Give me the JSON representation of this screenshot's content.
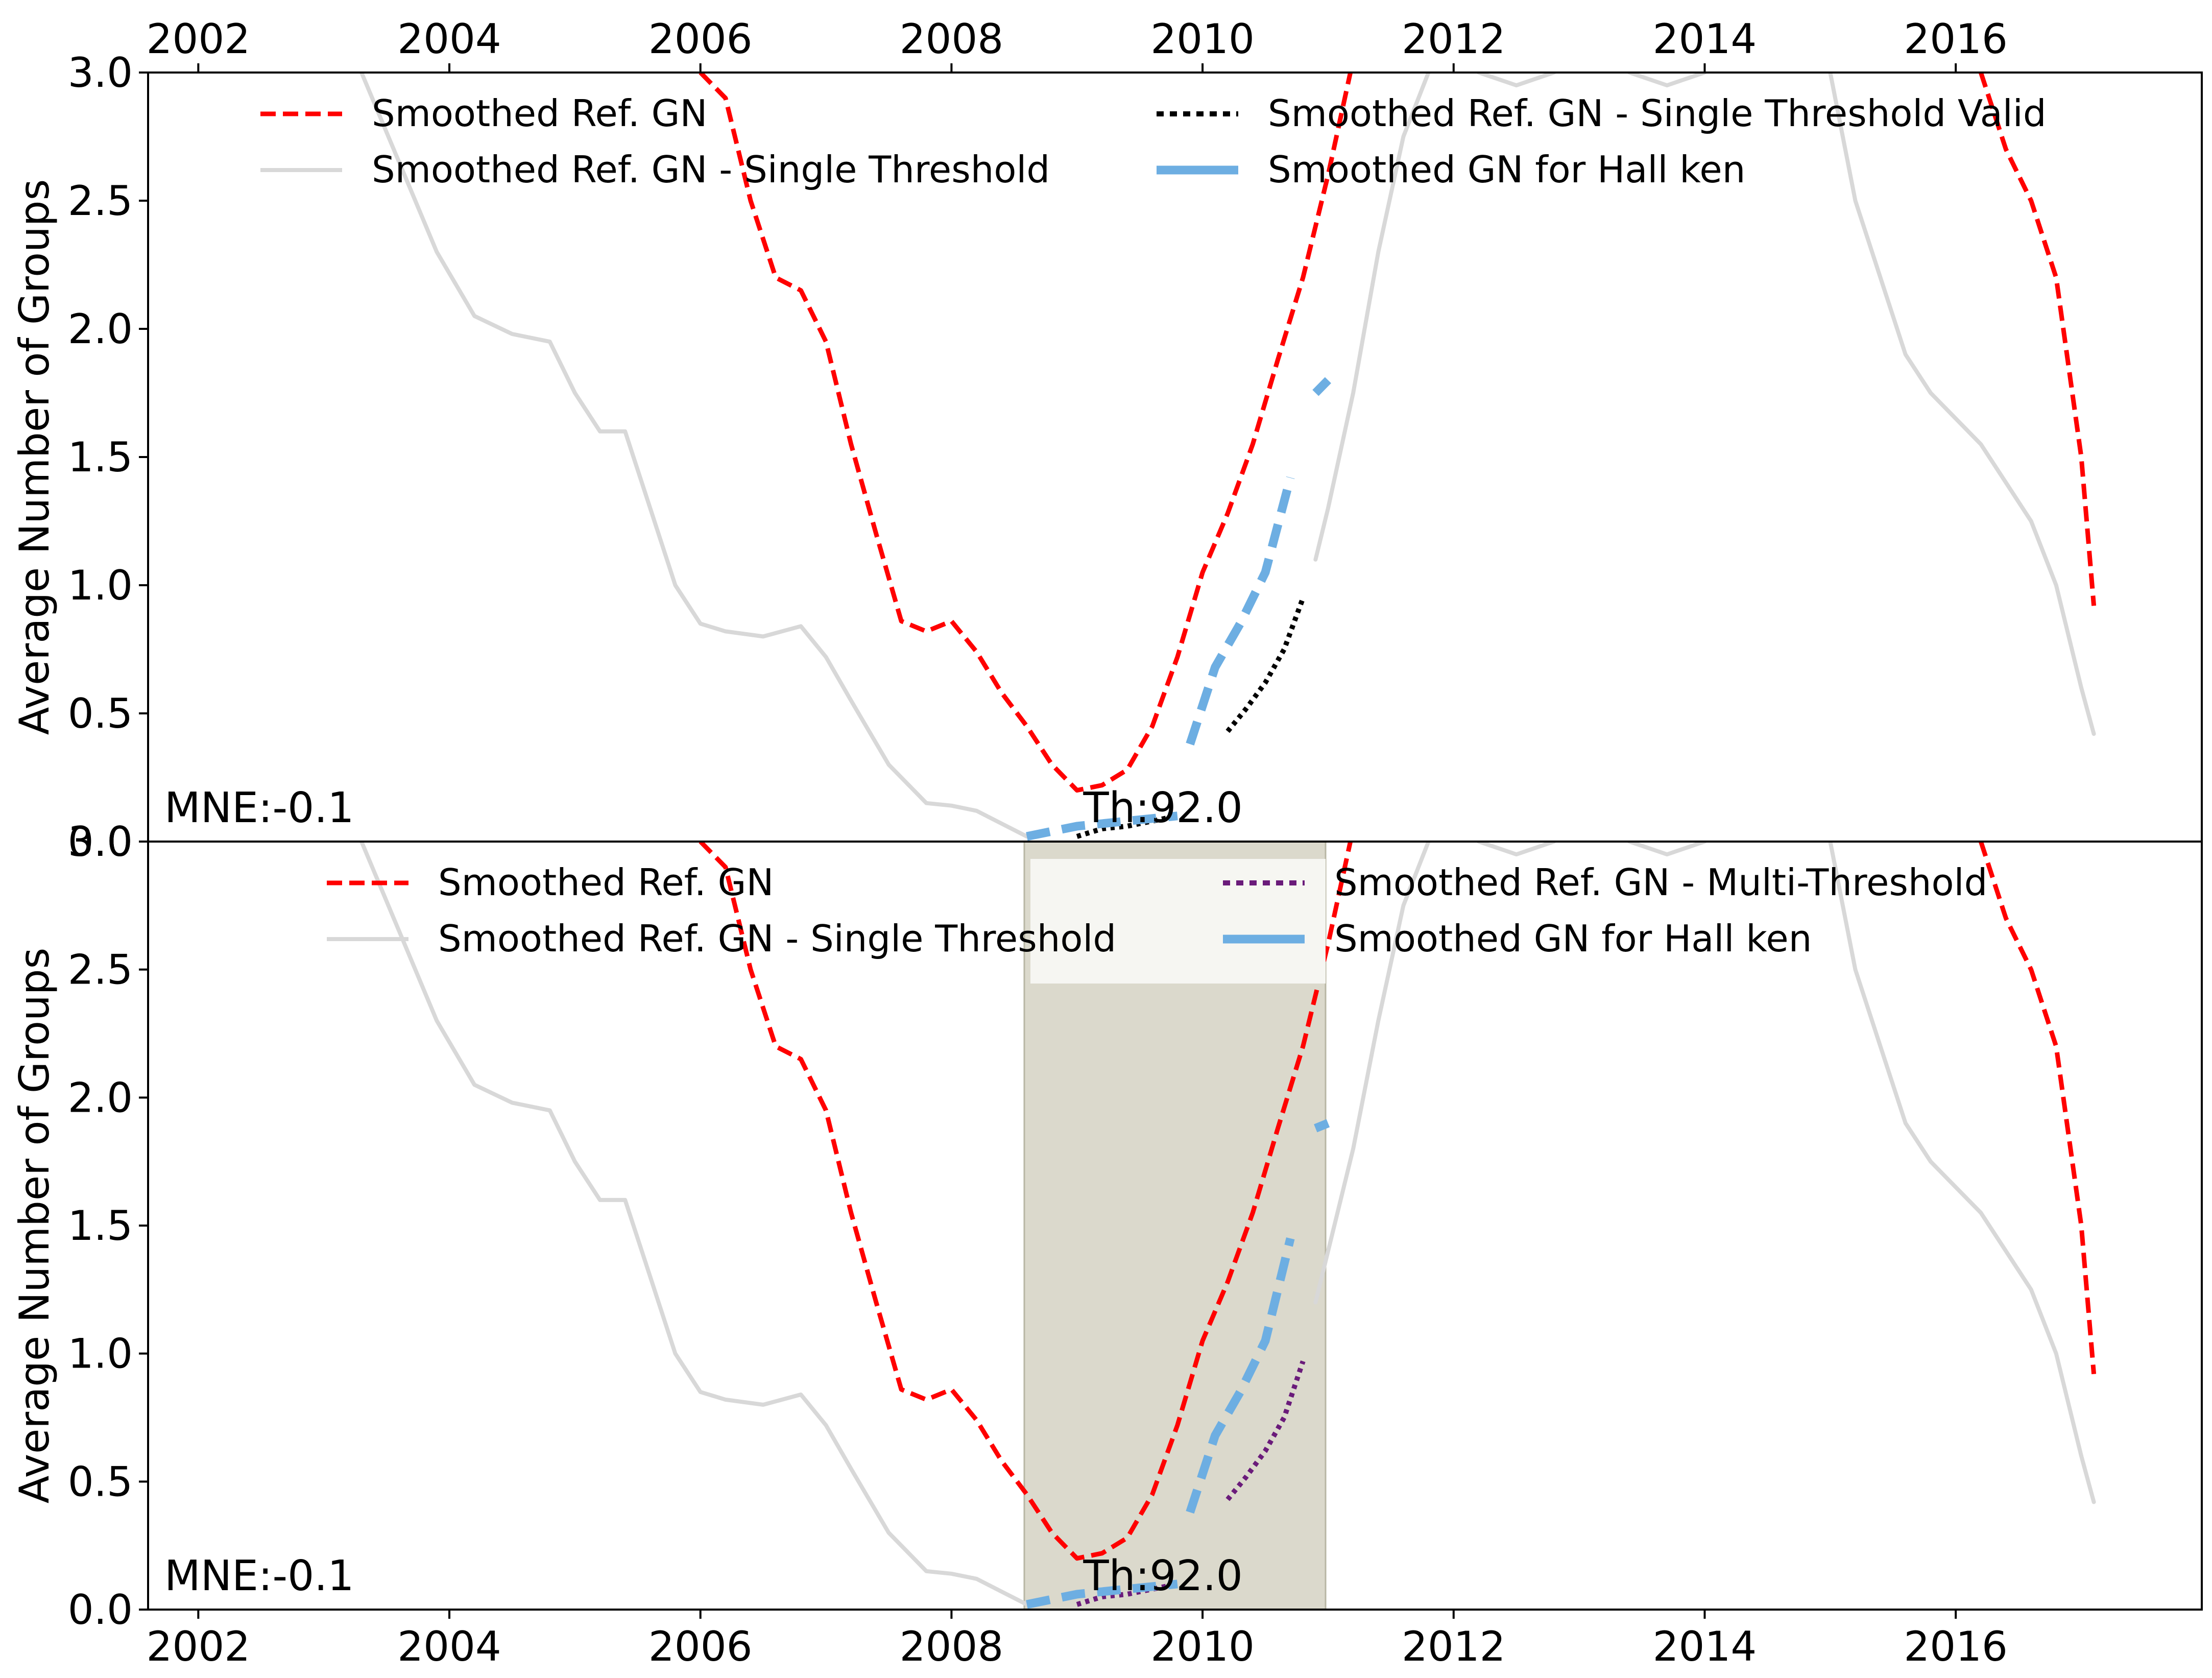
{
  "chart_data": [
    {
      "type": "line",
      "panel": "top",
      "ylabel": "Average Number of Groups",
      "xlabel": "",
      "xlim": [
        2001.6,
        2017.96
      ],
      "ylim": [
        0.0,
        3.0
      ],
      "x_ticks": [
        2002,
        2004,
        2006,
        2008,
        2010,
        2012,
        2014,
        2016
      ],
      "x_tick_labels": [
        "2002",
        "2004",
        "2006",
        "2008",
        "2010",
        "2012",
        "2014",
        "2016"
      ],
      "x_ticks_position": "top",
      "y_ticks": [
        0.0,
        0.5,
        1.0,
        1.5,
        2.0,
        2.5,
        3.0
      ],
      "y_tick_labels": [
        "0.0",
        "0.5",
        "1.0",
        "1.5",
        "2.0",
        "2.5",
        "3.0"
      ],
      "grid": false,
      "legend_position": "top",
      "annotations": [
        {
          "text": "MNE:-0.1",
          "x": 2001.7,
          "y": 0.07
        },
        {
          "text": "Th:92.0",
          "x": 2009.05,
          "y": 0.07
        }
      ],
      "series": [
        {
          "name": "Smoothed Ref. GN",
          "color": "#ff0000",
          "style": "dashed",
          "x": [
            2006.0,
            2006.2,
            2006.4,
            2006.6,
            2006.8,
            2007.0,
            2007.2,
            2007.4,
            2007.6,
            2007.8,
            2008.0,
            2008.2,
            2008.4,
            2008.6,
            2008.8,
            2009.0,
            2009.2,
            2009.4,
            2009.6,
            2009.8,
            2010.0,
            2010.2,
            2010.4,
            2010.6,
            2010.8,
            2011.0,
            2011.2
          ],
          "y": [
            3.0,
            2.9,
            2.5,
            2.2,
            2.15,
            1.95,
            1.55,
            1.2,
            0.86,
            0.82,
            0.86,
            0.74,
            0.58,
            0.45,
            0.3,
            0.2,
            0.22,
            0.28,
            0.45,
            0.72,
            1.05,
            1.28,
            1.55,
            1.88,
            2.2,
            2.6,
            3.05
          ]
        },
        {
          "name": "Smoothed Ref. GN",
          "color": "#ff0000",
          "style": "dashed",
          "x": [
            2016.2,
            2016.4,
            2016.6,
            2016.8,
            2017.0,
            2017.1
          ],
          "y": [
            3.0,
            2.7,
            2.5,
            2.2,
            1.5,
            0.92
          ]
        },
        {
          "name": "Smoothed Ref. GN - Single Threshold",
          "color": "#d8d8d8",
          "style": "solid",
          "x": [
            2003.3,
            2003.6,
            2003.9,
            2004.2,
            2004.5,
            2004.8,
            2005.0,
            2005.2,
            2005.4,
            2005.6,
            2005.8,
            2006.0,
            2006.2,
            2006.5,
            2006.8,
            2007.0,
            2007.2,
            2007.5,
            2007.8,
            2008.0,
            2008.2,
            2008.4,
            2008.6
          ],
          "y": [
            3.0,
            2.65,
            2.3,
            2.05,
            1.98,
            1.95,
            1.75,
            1.6,
            1.6,
            1.3,
            1.0,
            0.85,
            0.82,
            0.8,
            0.84,
            0.72,
            0.55,
            0.3,
            0.15,
            0.14,
            0.12,
            0.07,
            0.02
          ]
        },
        {
          "name": "Smoothed Ref. GN - Single Threshold",
          "color": "#d8d8d8",
          "style": "solid",
          "x": [
            2010.9,
            2011.0,
            2011.2,
            2011.4,
            2011.6,
            2011.8
          ],
          "y": [
            1.1,
            1.3,
            1.75,
            2.3,
            2.75,
            3.0
          ]
        },
        {
          "name": "Smoothed Ref. GN - Single Threshold",
          "color": "#d8d8d8",
          "style": "solid",
          "x": [
            2012.2,
            2012.5,
            2012.8
          ],
          "y": [
            3.0,
            2.95,
            3.0
          ]
        },
        {
          "name": "Smoothed Ref. GN - Single Threshold",
          "color": "#d8d8d8",
          "style": "solid",
          "x": [
            2013.4,
            2013.7,
            2014.0
          ],
          "y": [
            3.0,
            2.95,
            3.0
          ]
        },
        {
          "name": "Smoothed Ref. GN - Single Threshold",
          "color": "#d8d8d8",
          "style": "solid",
          "x": [
            2015.0,
            2015.2,
            2015.4,
            2015.6,
            2015.8,
            2016.0,
            2016.2,
            2016.4,
            2016.6,
            2016.8,
            2017.0,
            2017.1
          ],
          "y": [
            3.0,
            2.5,
            2.2,
            1.9,
            1.75,
            1.65,
            1.55,
            1.4,
            1.25,
            1.0,
            0.6,
            0.42
          ]
        },
        {
          "name": "Smoothed Ref. GN - Single Threshold Valid",
          "color": "#000000",
          "style": "dotted",
          "x": [
            2009.0,
            2009.2,
            2009.4,
            2009.6,
            2009.8
          ],
          "y": [
            0.02,
            0.05,
            0.06,
            0.08,
            0.1
          ]
        },
        {
          "name": "Smoothed Ref. GN - Single Threshold Valid",
          "color": "#000000",
          "style": "dotted",
          "x": [
            2010.2,
            2010.35,
            2010.5,
            2010.65,
            2010.8
          ],
          "y": [
            0.43,
            0.52,
            0.62,
            0.75,
            0.95
          ]
        },
        {
          "name": "Smoothed GN for Hall ken",
          "color": "#6daee2",
          "style": "thick-dashed",
          "x": [
            2008.6,
            2008.8,
            2009.0,
            2009.2,
            2009.4,
            2009.6,
            2009.8
          ],
          "y": [
            0.02,
            0.04,
            0.06,
            0.07,
            0.08,
            0.09,
            0.1
          ]
        },
        {
          "name": "Smoothed GN for Hall ken",
          "color": "#6daee2",
          "style": "thick-dashed",
          "x": [
            2009.9,
            2010.1,
            2010.3,
            2010.5,
            2010.7
          ],
          "y": [
            0.38,
            0.68,
            0.85,
            1.05,
            1.42
          ]
        },
        {
          "name": "Smoothed GN for Hall ken",
          "color": "#6daee2",
          "style": "thick-dashed",
          "x": [
            2010.9,
            2011.0
          ],
          "y": [
            1.75,
            1.8
          ]
        }
      ]
    },
    {
      "type": "line",
      "panel": "bottom",
      "ylabel": "Average Number of Groups",
      "xlabel": "",
      "xlim": [
        2001.6,
        2017.96
      ],
      "ylim": [
        0.0,
        3.0
      ],
      "x_ticks": [
        2002,
        2004,
        2006,
        2008,
        2010,
        2012,
        2014,
        2016
      ],
      "x_tick_labels": [
        "2002",
        "2004",
        "2006",
        "2008",
        "2010",
        "2012",
        "2014",
        "2016"
      ],
      "x_ticks_position": "bottom",
      "y_ticks": [
        0.0,
        0.5,
        1.0,
        1.5,
        2.0,
        2.5,
        3.0
      ],
      "y_tick_labels": [
        "0.0",
        "0.5",
        "1.0",
        "1.5",
        "2.0",
        "2.5",
        "3.0"
      ],
      "grid": false,
      "legend_position": "top",
      "shaded_region": {
        "x": [
          2008.58,
          2010.98
        ],
        "color": "#dbd9cc"
      },
      "annotations": [
        {
          "text": "MNE:-0.1",
          "x": 2001.7,
          "y": 0.07
        },
        {
          "text": "Th:92.0",
          "x": 2009.05,
          "y": 0.07
        }
      ],
      "series": [
        {
          "name": "Smoothed Ref. GN",
          "color": "#ff0000",
          "style": "dashed",
          "x": [
            2006.0,
            2006.2,
            2006.4,
            2006.6,
            2006.8,
            2007.0,
            2007.2,
            2007.4,
            2007.6,
            2007.8,
            2008.0,
            2008.2,
            2008.4,
            2008.6,
            2008.8,
            2009.0,
            2009.2,
            2009.4,
            2009.6,
            2009.8,
            2010.0,
            2010.2,
            2010.4,
            2010.6,
            2010.8,
            2011.0,
            2011.2
          ],
          "y": [
            3.0,
            2.9,
            2.5,
            2.2,
            2.15,
            1.95,
            1.55,
            1.2,
            0.86,
            0.82,
            0.86,
            0.74,
            0.58,
            0.45,
            0.3,
            0.2,
            0.22,
            0.28,
            0.45,
            0.72,
            1.05,
            1.28,
            1.55,
            1.88,
            2.2,
            2.6,
            3.05
          ]
        },
        {
          "name": "Smoothed Ref. GN",
          "color": "#ff0000",
          "style": "dashed",
          "x": [
            2016.2,
            2016.4,
            2016.6,
            2016.8,
            2017.0,
            2017.1
          ],
          "y": [
            3.0,
            2.7,
            2.5,
            2.2,
            1.5,
            0.92
          ]
        },
        {
          "name": "Smoothed Ref. GN - Single Threshold",
          "color": "#d8d8d8",
          "style": "solid",
          "x": [
            2003.3,
            2003.6,
            2003.9,
            2004.2,
            2004.5,
            2004.8,
            2005.0,
            2005.2,
            2005.4,
            2005.6,
            2005.8,
            2006.0,
            2006.2,
            2006.5,
            2006.8,
            2007.0,
            2007.2,
            2007.5,
            2007.8,
            2008.0,
            2008.2,
            2008.4,
            2008.6
          ],
          "y": [
            3.0,
            2.65,
            2.3,
            2.05,
            1.98,
            1.95,
            1.75,
            1.6,
            1.6,
            1.3,
            1.0,
            0.85,
            0.82,
            0.8,
            0.84,
            0.72,
            0.55,
            0.3,
            0.15,
            0.14,
            0.12,
            0.07,
            0.02
          ]
        },
        {
          "name": "Smoothed Ref. GN - Single Threshold",
          "color": "#d8d8d8",
          "style": "solid",
          "x": [
            2010.9,
            2011.0,
            2011.2,
            2011.4,
            2011.6,
            2011.8
          ],
          "y": [
            1.2,
            1.4,
            1.8,
            2.3,
            2.75,
            3.0
          ]
        },
        {
          "name": "Smoothed Ref. GN - Single Threshold",
          "color": "#d8d8d8",
          "style": "solid",
          "x": [
            2012.2,
            2012.5,
            2012.8
          ],
          "y": [
            3.0,
            2.95,
            3.0
          ]
        },
        {
          "name": "Smoothed Ref. GN - Single Threshold",
          "color": "#d8d8d8",
          "style": "solid",
          "x": [
            2013.4,
            2013.7,
            2014.0
          ],
          "y": [
            3.0,
            2.95,
            3.0
          ]
        },
        {
          "name": "Smoothed Ref. GN - Single Threshold",
          "color": "#d8d8d8",
          "style": "solid",
          "x": [
            2015.0,
            2015.2,
            2015.4,
            2015.6,
            2015.8,
            2016.0,
            2016.2,
            2016.4,
            2016.6,
            2016.8,
            2017.0,
            2017.1
          ],
          "y": [
            3.0,
            2.5,
            2.2,
            1.9,
            1.75,
            1.65,
            1.55,
            1.4,
            1.25,
            1.0,
            0.6,
            0.42
          ]
        },
        {
          "name": "Smoothed Ref. GN - Multi-Threshold",
          "color": "#6a1b7a",
          "style": "dotted",
          "x": [
            2009.0,
            2009.2,
            2009.4,
            2009.6,
            2009.8
          ],
          "y": [
            0.02,
            0.05,
            0.06,
            0.08,
            0.1
          ]
        },
        {
          "name": "Smoothed Ref. GN - Multi-Threshold",
          "color": "#6a1b7a",
          "style": "dotted",
          "x": [
            2010.2,
            2010.35,
            2010.5,
            2010.65,
            2010.8
          ],
          "y": [
            0.43,
            0.52,
            0.62,
            0.75,
            0.97
          ]
        },
        {
          "name": "Smoothed GN for Hall ken",
          "color": "#6daee2",
          "style": "thick-dashed",
          "x": [
            2008.6,
            2008.8,
            2009.0,
            2009.2,
            2009.4,
            2009.6,
            2009.8
          ],
          "y": [
            0.02,
            0.04,
            0.06,
            0.07,
            0.08,
            0.09,
            0.1
          ]
        },
        {
          "name": "Smoothed GN for Hall ken",
          "color": "#6daee2",
          "style": "thick-dashed",
          "x": [
            2009.9,
            2010.1,
            2010.3,
            2010.5,
            2010.7
          ],
          "y": [
            0.38,
            0.68,
            0.85,
            1.05,
            1.45
          ]
        },
        {
          "name": "Smoothed GN for Hall ken",
          "color": "#6daee2",
          "style": "thick-dashed",
          "x": [
            2010.9,
            2011.0
          ],
          "y": [
            1.88,
            1.9
          ]
        }
      ]
    }
  ],
  "legends": [
    {
      "panel": "top",
      "entries": [
        {
          "label": "Smoothed Ref. GN",
          "color": "#ff0000",
          "style": "dashed"
        },
        {
          "label": "Smoothed Ref. GN - Single Threshold",
          "color": "#d8d8d8",
          "style": "solid"
        },
        {
          "label": "Smoothed Ref. GN - Single Threshold Valid",
          "color": "#000000",
          "style": "dotted"
        },
        {
          "label": "Smoothed GN for Hall ken",
          "color": "#6daee2",
          "style": "thick"
        }
      ]
    },
    {
      "panel": "bottom",
      "entries": [
        {
          "label": "Smoothed Ref. GN",
          "color": "#ff0000",
          "style": "dashed"
        },
        {
          "label": "Smoothed Ref. GN - Single Threshold",
          "color": "#d8d8d8",
          "style": "solid"
        },
        {
          "label": "Smoothed Ref. GN - Multi-Threshold",
          "color": "#6a1b7a",
          "style": "dotted"
        },
        {
          "label": "Smoothed GN for Hall ken",
          "color": "#6daee2",
          "style": "thick"
        }
      ]
    }
  ]
}
